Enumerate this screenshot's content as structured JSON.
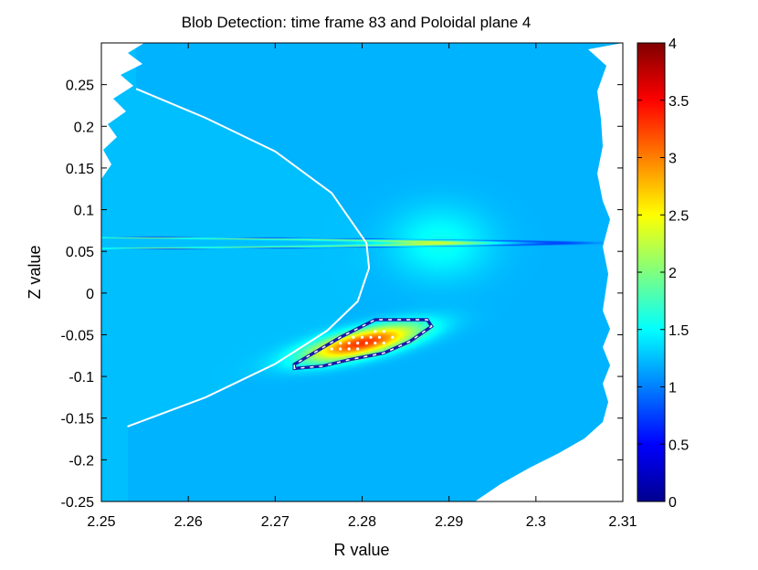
{
  "chart_data": {
    "type": "heatmap",
    "title": "Blob Detection: time frame 83 and Poloidal plane 4",
    "xlabel": "R value",
    "ylabel": "Z value",
    "xlim": [
      2.25,
      2.31
    ],
    "ylim": [
      -0.25,
      0.3
    ],
    "xticks": [
      "2.25",
      "2.26",
      "2.27",
      "2.28",
      "2.29",
      "2.3",
      "2.31"
    ],
    "yticks": [
      "-0.25",
      "-0.2",
      "-0.15",
      "-0.1",
      "-0.05",
      "0",
      "0.05",
      "0.1",
      "0.15",
      "0.2",
      "0.25"
    ],
    "colorbar": {
      "min": 0,
      "max": 4,
      "colormap": "jet",
      "ticks": [
        "0",
        "0.5",
        "1",
        "1.5",
        "2",
        "2.5",
        "3",
        "3.5",
        "4"
      ]
    },
    "features": {
      "background_level": 1.2,
      "band_peak_level": 2.1,
      "band_vertex_R": 2.289,
      "band_vertex_Z": 0.06,
      "blob_peak_level": 4.0,
      "blob_center_R": 2.28,
      "blob_center_Z": -0.06
    },
    "separatrix_curve": {
      "color": "#ffffff",
      "points": [
        [
          2.254,
          0.245
        ],
        [
          2.262,
          0.21
        ],
        [
          2.27,
          0.17
        ],
        [
          2.2765,
          0.12
        ],
        [
          2.2805,
          0.06
        ],
        [
          2.2808,
          0.03
        ],
        [
          2.2795,
          -0.01
        ],
        [
          2.276,
          -0.045
        ],
        [
          2.27,
          -0.085
        ],
        [
          2.262,
          -0.125
        ],
        [
          2.253,
          -0.16
        ]
      ]
    },
    "blob_contour": {
      "color": "#1a1aa6",
      "points": [
        [
          2.2722,
          -0.0905
        ],
        [
          2.2722,
          -0.0855
        ],
        [
          2.2775,
          -0.053
        ],
        [
          2.2815,
          -0.032
        ],
        [
          2.2875,
          -0.032
        ],
        [
          2.288,
          -0.04
        ],
        [
          2.2855,
          -0.058
        ],
        [
          2.2825,
          -0.072
        ],
        [
          2.2785,
          -0.08
        ],
        [
          2.2755,
          -0.0875
        ]
      ]
    },
    "blob_points": [
      [
        2.2775,
        -0.06
      ],
      [
        2.2785,
        -0.06
      ],
      [
        2.2795,
        -0.06
      ],
      [
        2.2805,
        -0.06
      ],
      [
        2.2815,
        -0.06
      ],
      [
        2.279,
        -0.053
      ],
      [
        2.28,
        -0.053
      ],
      [
        2.281,
        -0.053
      ],
      [
        2.282,
        -0.053
      ],
      [
        2.2815,
        -0.046
      ],
      [
        2.2825,
        -0.046
      ],
      [
        2.2765,
        -0.067
      ],
      [
        2.2775,
        -0.067
      ],
      [
        2.2785,
        -0.067
      ],
      [
        2.2795,
        -0.067
      ],
      [
        2.2825,
        -0.06
      ],
      [
        2.2835,
        -0.053
      ]
    ]
  }
}
